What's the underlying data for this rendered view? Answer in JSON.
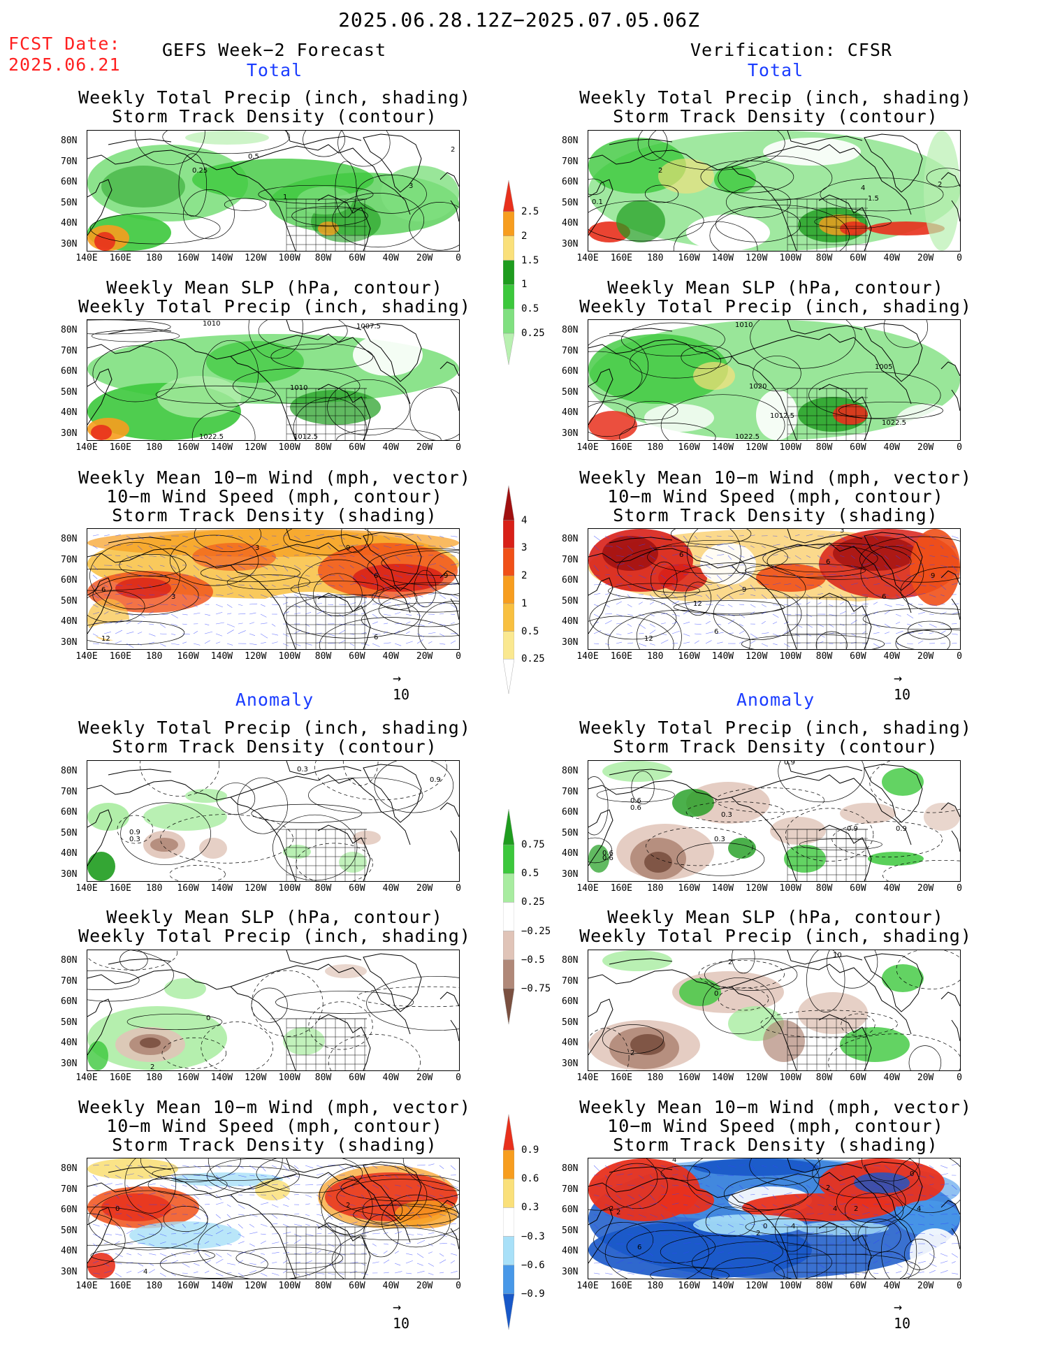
{
  "header": {
    "date_range": "2025.06.28.12Z−2025.07.05.06Z",
    "fcst_label": "FCST Date:",
    "fcst_date": "2025.06.21",
    "left_title": "GEFS Week−2 Forecast",
    "right_title": "Verification: CFSR"
  },
  "sections": {
    "total": "Total",
    "anomaly": "Anomaly"
  },
  "panel_titles": {
    "precip_storm": [
      "Weekly Total Precip (inch, shading)",
      "Storm Track Density (contour)"
    ],
    "slp_precip": [
      "Weekly Mean SLP (hPa, contour)",
      "Weekly Total Precip (inch, shading)"
    ],
    "wind": [
      "Weekly Mean 10−m Wind (mph, vector)",
      "10−m Wind Speed (mph, contour)",
      "Storm Track Density (shading)"
    ]
  },
  "axes": {
    "lat_ticks": [
      "80N",
      "70N",
      "60N",
      "50N",
      "40N",
      "30N"
    ],
    "lon_ticks": [
      "140E",
      "160E",
      "180",
      "160W",
      "140W",
      "120W",
      "100W",
      "80W",
      "60W",
      "40W",
      "20W",
      "0"
    ]
  },
  "vector_ref": "10",
  "colorbars": {
    "precip_total": {
      "labels": [
        "2.5",
        "2",
        "1.5",
        "1",
        "0.5",
        "0.25"
      ],
      "colors": [
        "#e8301c",
        "#f79d1e",
        "#fae07a",
        "#1e9c1e",
        "#3cc83c",
        "#80e080",
        "#b8f0b0"
      ]
    },
    "storm_total": {
      "labels": [
        "4",
        "3",
        "2",
        "1",
        "0.5",
        "0.25"
      ],
      "colors": [
        "#a01010",
        "#d82018",
        "#f05018",
        "#f79d1e",
        "#f8c040",
        "#fae890",
        "#ffffff"
      ]
    },
    "precip_anom": {
      "labels": [
        "0.75",
        "0.5",
        "0.25",
        "−0.25",
        "−0.5",
        "−0.75"
      ],
      "colors": [
        "#1e9c1e",
        "#3cc83c",
        "#a8eca0",
        "#ffffff",
        "#e0c4b8",
        "#b08878",
        "#7a5040"
      ]
    },
    "storm_anom": {
      "labels": [
        "0.9",
        "0.6",
        "0.3",
        "−0.3",
        "−0.6",
        "−0.9"
      ],
      "colors": [
        "#e8301c",
        "#f79d1e",
        "#fae07a",
        "#ffffff",
        "#a8e0f8",
        "#4898e8",
        "#1858c8"
      ]
    }
  },
  "contour_labels": {
    "l1": [
      "0.5",
      "0.25",
      "3",
      "1",
      "2"
    ],
    "r1": [
      "2",
      "4",
      "2",
      "1.5",
      "0.1"
    ],
    "l2": [
      "1010",
      "1007.5",
      "1010",
      "1022.5",
      "1012.5"
    ],
    "r2": [
      "1010",
      "1005",
      "1020",
      "1012.5",
      "1022.5",
      "1022.5"
    ],
    "l3": [
      "3",
      "3",
      "6",
      "3",
      "6",
      "9",
      "12",
      "9",
      "6"
    ],
    "r3": [
      "3",
      "6",
      "9",
      "6",
      "12",
      "12",
      "6",
      "9",
      "6"
    ],
    "l4": [
      "0.3",
      "0.9",
      "0.9",
      "0.3"
    ],
    "r4": [
      "0.9",
      "0.6",
      "0.6",
      "0.3",
      "0.3",
      "0.9",
      "0.9",
      "0.6",
      "0.6"
    ],
    "l5": [
      "0",
      "2"
    ],
    "r5": [
      "2",
      "0",
      "10",
      "2"
    ],
    "l6": [
      "0",
      "2",
      "4"
    ],
    "r6": [
      "4",
      "2",
      "2",
      "4",
      "4",
      "2",
      "2",
      "0",
      "6",
      "2",
      "4",
      "0"
    ]
  }
}
